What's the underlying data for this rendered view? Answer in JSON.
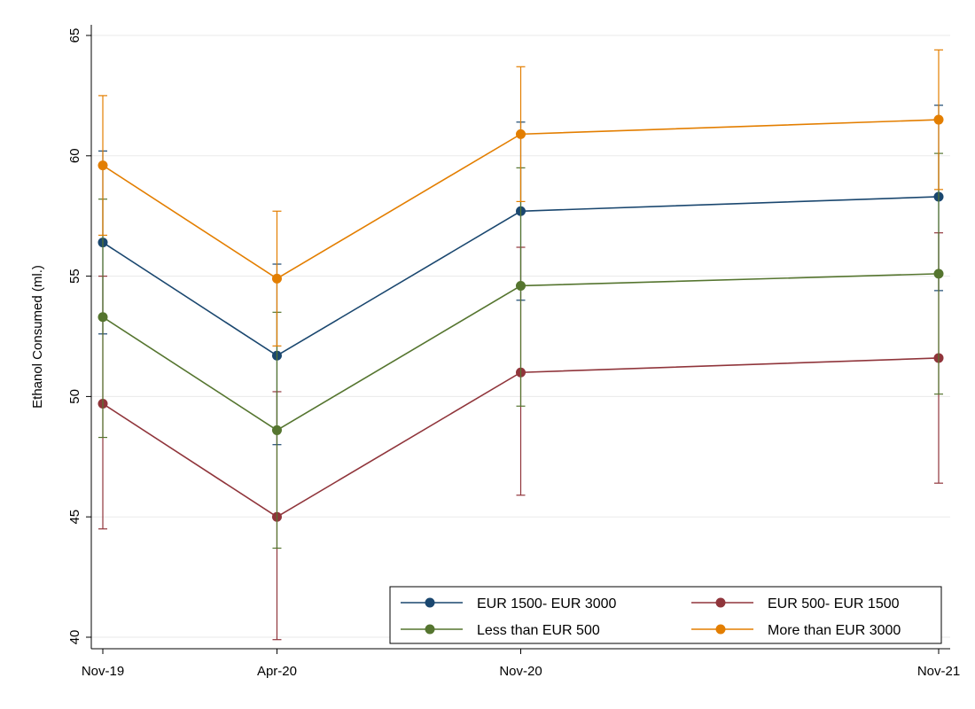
{
  "chart_data": {
    "type": "line",
    "title": "",
    "xlabel": "",
    "ylabel": "Ethanol Consumed (ml.)",
    "categories": [
      "Nov-19",
      "Apr-20",
      "Nov-20",
      "Nov-21"
    ],
    "x_positions": [
      0,
      5,
      12,
      24
    ],
    "ylim": [
      40,
      65
    ],
    "yticks": [
      40,
      45,
      50,
      55,
      60,
      65
    ],
    "grid": true,
    "legend_position": "bottom-right",
    "series": [
      {
        "name": "EUR 1500- EUR 3000",
        "color": "#1a476f",
        "values": [
          56.4,
          51.7,
          57.7,
          58.3
        ],
        "ci_low": [
          52.6,
          48.0,
          54.0,
          54.4
        ],
        "ci_high": [
          60.2,
          55.5,
          61.4,
          62.1
        ]
      },
      {
        "name": "EUR 500- EUR 1500",
        "color": "#90353b",
        "values": [
          49.7,
          45.0,
          51.0,
          51.6
        ],
        "ci_low": [
          44.5,
          39.9,
          45.9,
          46.4
        ],
        "ci_high": [
          55.0,
          50.2,
          56.2,
          56.8
        ]
      },
      {
        "name": "Less than EUR 500",
        "color": "#55752f",
        "values": [
          53.3,
          48.6,
          54.6,
          55.1
        ],
        "ci_low": [
          48.3,
          43.7,
          49.6,
          50.1
        ],
        "ci_high": [
          58.2,
          53.5,
          59.5,
          60.1
        ]
      },
      {
        "name": "More than EUR 3000",
        "color": "#e37e00",
        "values": [
          59.6,
          54.9,
          60.9,
          61.5
        ],
        "ci_low": [
          56.7,
          52.1,
          58.1,
          58.6
        ],
        "ci_high": [
          62.5,
          57.7,
          63.7,
          64.4
        ]
      }
    ],
    "legend_order": [
      0,
      1,
      2,
      3
    ]
  }
}
